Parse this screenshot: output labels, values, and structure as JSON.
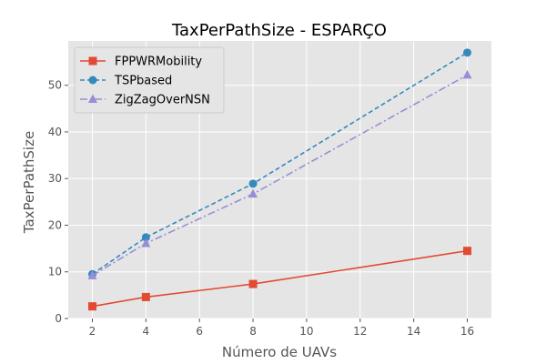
{
  "chart_data": {
    "type": "line",
    "title": "TaxPerPathSize - ESPARÇO",
    "xlabel": "Número de UAVs",
    "ylabel": "TaxPerPathSize",
    "xlim": [
      1.1,
      16.9
    ],
    "ylim": [
      0,
      59.5
    ],
    "xticks": [
      2,
      4,
      6,
      8,
      10,
      12,
      14,
      16
    ],
    "yticks": [
      0,
      10,
      20,
      30,
      40,
      50
    ],
    "grid": true,
    "legend_position": "top-left",
    "background": "#e5e5e5",
    "x": [
      2,
      4,
      8,
      16
    ],
    "series": [
      {
        "name": "FPPWRMobility",
        "values": [
          2.6,
          4.6,
          7.4,
          14.5
        ],
        "color": "#e24a33",
        "marker": "square",
        "line": "solid"
      },
      {
        "name": "TSPbased",
        "values": [
          9.5,
          17.4,
          28.9,
          57.0
        ],
        "color": "#348abd",
        "marker": "circle",
        "line": "dashed"
      },
      {
        "name": "ZigZagOverNSN",
        "values": [
          9.2,
          16.1,
          26.7,
          52.2
        ],
        "color": "#988ed5",
        "marker": "triangle",
        "line": "dashdot"
      }
    ]
  }
}
